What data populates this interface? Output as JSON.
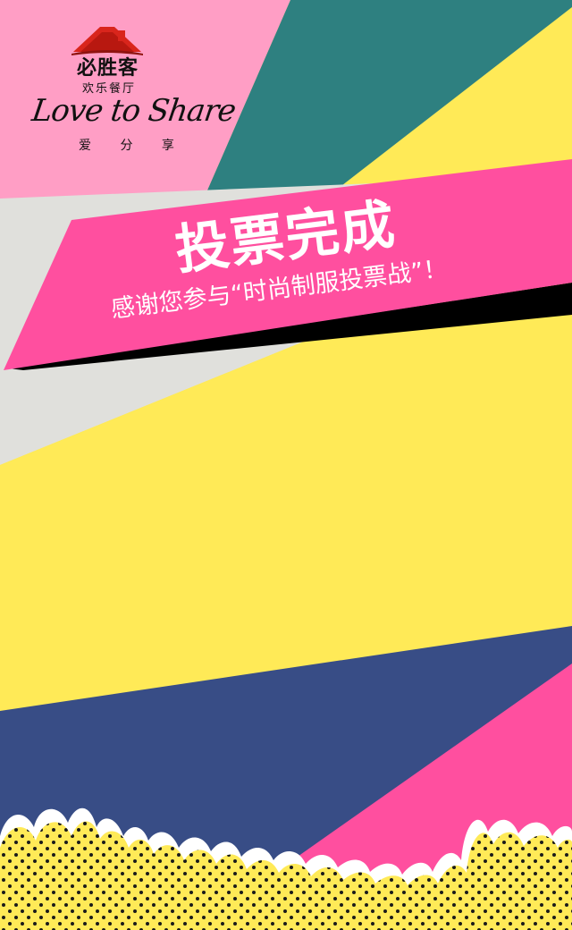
{
  "brand": {
    "name": "必胜客",
    "subtitle": "欢乐餐厅",
    "script": "Love to Share",
    "tagline": "爱 分 享",
    "logo_icon": "roof-logo-icon"
  },
  "banner": {
    "title": "投票完成",
    "message": "感谢您参与“时尚制服投票战”！"
  },
  "colors": {
    "pink": "#ff4f9f",
    "light_pink": "#ff9ec5",
    "teal": "#2e8080",
    "yellow": "#ffea57",
    "grey": "#e0e0dc",
    "navy": "#384d86",
    "black": "#000000",
    "logo_red": "#d9251c"
  }
}
